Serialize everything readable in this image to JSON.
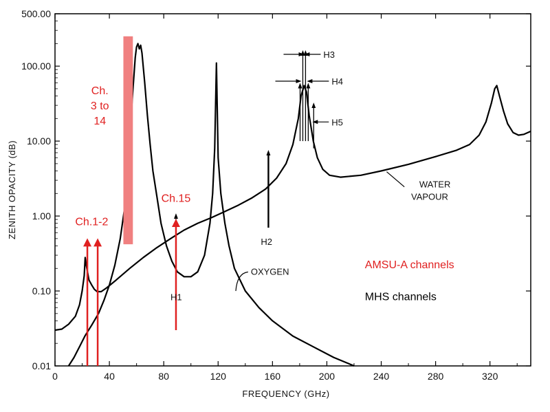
{
  "chart_data": {
    "type": "line",
    "title": "",
    "xlabel": "FREQUENCY (GHz)",
    "ylabel": "ZENITH OPACITY (dB)",
    "xlim": [
      0,
      350
    ],
    "ylim": [
      0.01,
      500
    ],
    "yscale": "log",
    "x_ticks": [
      0,
      40,
      80,
      120,
      160,
      200,
      240,
      280,
      320
    ],
    "x_tick_labels": [
      "0",
      "40",
      "80",
      "120",
      "160",
      "200",
      "240",
      "280",
      "320"
    ],
    "y_ticks": [
      0.01,
      0.1,
      1,
      10,
      100,
      500
    ],
    "y_tick_labels": [
      "0.01",
      "0.10",
      "1.00",
      "10.00",
      "100.00",
      "500.00"
    ],
    "colors": {
      "curve": "#000000",
      "amsu": "#e02020",
      "amsu_band": "#f08080",
      "mhs": "#000000"
    },
    "series": [
      {
        "name": "OXYGEN",
        "points": [
          [
            10,
            0.01
          ],
          [
            14,
            0.013
          ],
          [
            18,
            0.018
          ],
          [
            22,
            0.025
          ],
          [
            27,
            0.035
          ],
          [
            32,
            0.05
          ],
          [
            36,
            0.075
          ],
          [
            40,
            0.12
          ],
          [
            44,
            0.22
          ],
          [
            48,
            0.5
          ],
          [
            51,
            1.2
          ],
          [
            54,
            6
          ],
          [
            57,
            40
          ],
          [
            59,
            130
          ],
          [
            60,
            180
          ],
          [
            61,
            200
          ],
          [
            62,
            170
          ],
          [
            63,
            190
          ],
          [
            64,
            150
          ],
          [
            66,
            60
          ],
          [
            68,
            22
          ],
          [
            70,
            9
          ],
          [
            72,
            4
          ],
          [
            75,
            1.8
          ],
          [
            78,
            0.8
          ],
          [
            82,
            0.4
          ],
          [
            86,
            0.25
          ],
          [
            90,
            0.18
          ],
          [
            95,
            0.155
          ],
          [
            100,
            0.155
          ],
          [
            105,
            0.18
          ],
          [
            110,
            0.3
          ],
          [
            114,
            0.8
          ],
          [
            116,
            2
          ],
          [
            117.5,
            8
          ],
          [
            118.75,
            110
          ],
          [
            120,
            6
          ],
          [
            122,
            2
          ],
          [
            125,
            0.8
          ],
          [
            128,
            0.4
          ],
          [
            132,
            0.2
          ],
          [
            140,
            0.1
          ],
          [
            150,
            0.06
          ],
          [
            160,
            0.04
          ],
          [
            175,
            0.025
          ],
          [
            190,
            0.018
          ],
          [
            205,
            0.013
          ],
          [
            220,
            0.01
          ]
        ]
      },
      {
        "name": "WATER VAPOUR",
        "points": [
          [
            0,
            0.03
          ],
          [
            5,
            0.031
          ],
          [
            10,
            0.036
          ],
          [
            15,
            0.046
          ],
          [
            18,
            0.065
          ],
          [
            20,
            0.1
          ],
          [
            21.5,
            0.16
          ],
          [
            22.2,
            0.28
          ],
          [
            23,
            0.22
          ],
          [
            25,
            0.14
          ],
          [
            27,
            0.12
          ],
          [
            29,
            0.105
          ],
          [
            31,
            0.098
          ],
          [
            34,
            0.098
          ],
          [
            38,
            0.11
          ],
          [
            45,
            0.14
          ],
          [
            55,
            0.2
          ],
          [
            65,
            0.28
          ],
          [
            75,
            0.38
          ],
          [
            85,
            0.5
          ],
          [
            95,
            0.65
          ],
          [
            105,
            0.8
          ],
          [
            115,
            0.95
          ],
          [
            125,
            1.15
          ],
          [
            135,
            1.4
          ],
          [
            145,
            1.75
          ],
          [
            155,
            2.3
          ],
          [
            163,
            3.2
          ],
          [
            170,
            5
          ],
          [
            175,
            9
          ],
          [
            179,
            20
          ],
          [
            181,
            40
          ],
          [
            183.3,
            55
          ],
          [
            185,
            45
          ],
          [
            187,
            22
          ],
          [
            190,
            10
          ],
          [
            193,
            6
          ],
          [
            197,
            4.2
          ],
          [
            202,
            3.5
          ],
          [
            210,
            3.3
          ],
          [
            225,
            3.5
          ],
          [
            240,
            4
          ],
          [
            260,
            4.9
          ],
          [
            280,
            6.2
          ],
          [
            295,
            7.5
          ],
          [
            305,
            9
          ],
          [
            312,
            12
          ],
          [
            317,
            18
          ],
          [
            321,
            32
          ],
          [
            323.5,
            50
          ],
          [
            325,
            55
          ],
          [
            327,
            40
          ],
          [
            330,
            25
          ],
          [
            333,
            17
          ],
          [
            337,
            13
          ],
          [
            341,
            12
          ],
          [
            345,
            12.3
          ],
          [
            350,
            13.5
          ]
        ]
      }
    ],
    "curve_labels": {
      "oxygen": "OXYGEN",
      "water_line1": "WATER",
      "water_line2": "VAPOUR"
    },
    "mhs_channels": [
      {
        "label": "H1",
        "freq": 89,
        "low": 0.1,
        "high": 1.0
      },
      {
        "label": "H2",
        "freq": 157,
        "low": 0.7,
        "high": 7.0
      },
      {
        "label": "H3",
        "freq": 183.31,
        "offset": 1,
        "low": 10,
        "high": 150
      },
      {
        "label": "H4",
        "freq": 183.31,
        "offset": 3,
        "low": 10,
        "high": 55
      },
      {
        "label": "H5",
        "freq": 190.31,
        "low": 8,
        "high": 30
      }
    ],
    "amsu_channels": [
      {
        "label": "Ch.1-2",
        "freqs": [
          23.8,
          31.4
        ],
        "low": 0.01,
        "high": 0.55
      },
      {
        "label": "Ch. 3 to 14",
        "band": [
          50.3,
          57.3
        ],
        "low": 0.42,
        "high": 250
      },
      {
        "label": "Ch.15",
        "freqs": [
          89
        ],
        "low": 0.03,
        "high": 1.0
      }
    ],
    "amsu_label_parts": {
      "l1": "Ch.",
      "l2": "3 to",
      "l3": "14"
    },
    "legend": [
      {
        "label": "AMSU-A channels",
        "color": "#e02020"
      },
      {
        "label": "MHS channels",
        "color": "#000000"
      }
    ]
  }
}
